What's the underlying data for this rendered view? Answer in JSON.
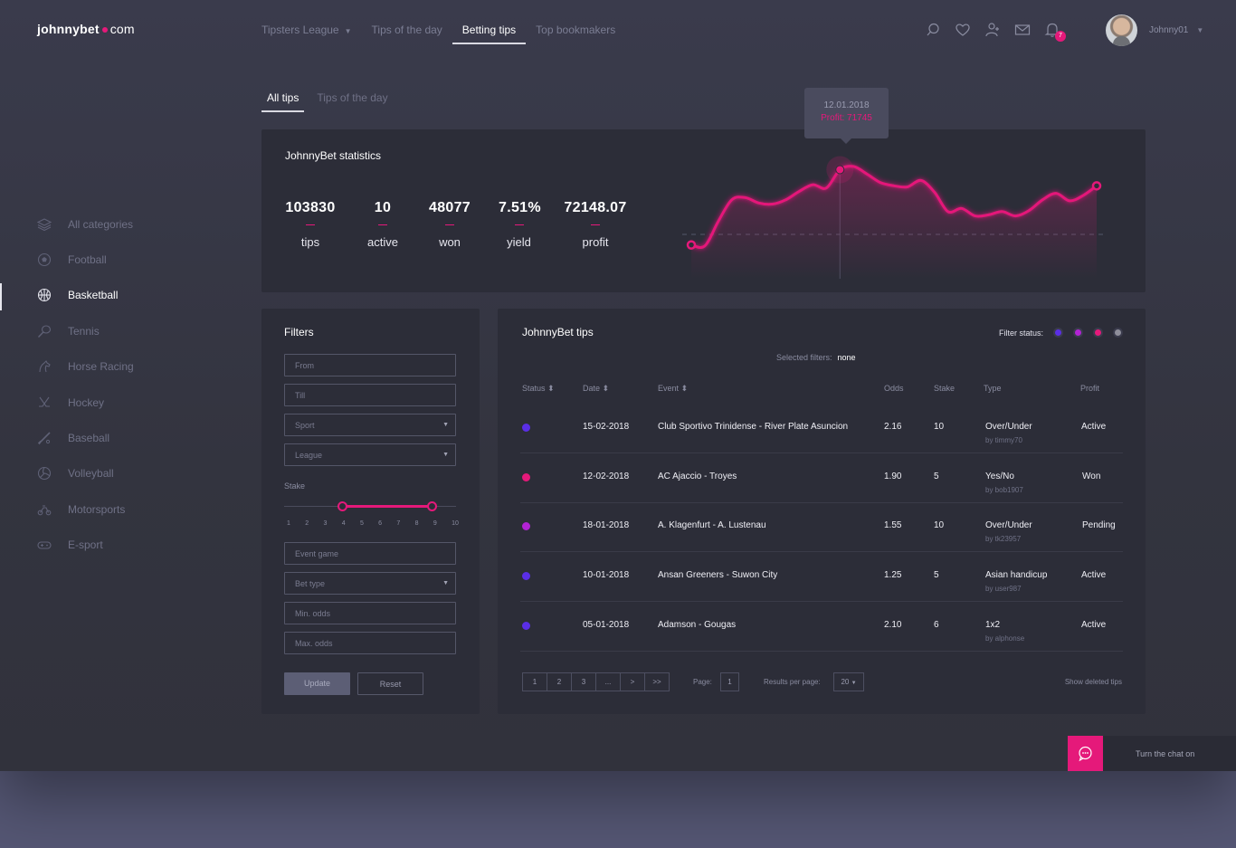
{
  "logo": {
    "brand": "johnnybet",
    "suffix": "com"
  },
  "nav": {
    "items": [
      {
        "label": "Tipsters League",
        "dropdown": true
      },
      {
        "label": "Tips of the day"
      },
      {
        "label": "Betting tips",
        "active": true
      },
      {
        "label": "Top bookmakers"
      }
    ]
  },
  "header": {
    "icons": [
      "search-icon",
      "heart-icon",
      "user-add-icon",
      "mail-icon",
      "bell-icon"
    ],
    "notification_count": "7",
    "username": "Johnny01"
  },
  "sidebar": {
    "items": [
      {
        "label": "All categories",
        "icon": "layers-icon"
      },
      {
        "label": "Football",
        "icon": "football-icon"
      },
      {
        "label": "Basketball",
        "icon": "basketball-icon",
        "active": true
      },
      {
        "label": "Tennis",
        "icon": "tennis-icon"
      },
      {
        "label": "Horse Racing",
        "icon": "horse-icon"
      },
      {
        "label": "Hockey",
        "icon": "hockey-icon"
      },
      {
        "label": "Baseball",
        "icon": "baseball-icon"
      },
      {
        "label": "Volleyball",
        "icon": "volleyball-icon"
      },
      {
        "label": "Motorsports",
        "icon": "motorsports-icon"
      },
      {
        "label": "E-sport",
        "icon": "gamepad-icon"
      }
    ]
  },
  "tabs": [
    {
      "label": "All tips",
      "active": true
    },
    {
      "label": "Tips of the day"
    }
  ],
  "stats": {
    "title": "JohnnyBet statistics",
    "items": [
      {
        "value": "103830",
        "label": "tips"
      },
      {
        "value": "10",
        "label": "active"
      },
      {
        "value": "48077",
        "label": "won"
      },
      {
        "value": "7.51%",
        "label": "yield"
      },
      {
        "value": "72148.07",
        "label": "profit"
      }
    ],
    "tooltip": {
      "date": "12.01.2018",
      "profit": "Profit: 71745"
    }
  },
  "chart_data": {
    "type": "line",
    "x": [
      0,
      1,
      2,
      3,
      4,
      5,
      6,
      7,
      8,
      9,
      10,
      11,
      12,
      13,
      14,
      15,
      16,
      17,
      18,
      19,
      20,
      21,
      22,
      23,
      24,
      25,
      26,
      27,
      28,
      29,
      30
    ],
    "values": [
      2,
      1,
      24,
      44,
      46,
      41,
      40,
      44,
      52,
      58,
      55,
      72,
      75,
      68,
      60,
      57,
      56,
      62,
      51,
      33,
      36,
      29,
      30,
      33,
      29,
      34,
      44,
      50,
      43,
      48,
      57
    ],
    "highlight_index": 11,
    "color": "#e5197a"
  },
  "filters": {
    "title": "Filters",
    "from_placeholder": "From",
    "till_placeholder": "Till",
    "sport": "Sport",
    "league": "League",
    "stake_label": "Stake",
    "stake_ticks": [
      "1",
      "2",
      "3",
      "4",
      "5",
      "6",
      "7",
      "8",
      "9",
      "10"
    ],
    "stake_range": [
      4,
      9
    ],
    "event_placeholder": "Event game",
    "bet_type": "Bet type",
    "min_odds_placeholder": "Min. odds",
    "max_odds_placeholder": "Max. odds",
    "update_label": "Update",
    "reset_label": "Reset"
  },
  "tips": {
    "title": "JohnnyBet tips",
    "filter_status_label": "Filter status:",
    "status_colors": [
      "#5a2ee6",
      "#b223d4",
      "#e5197a",
      "#8e8e9a"
    ],
    "selected_label": "Selected filters:",
    "selected_value": "none",
    "columns": {
      "status": "Status",
      "date": "Date",
      "event": "Event",
      "odds": "Odds",
      "stake": "Stake",
      "type": "Type",
      "profit": "Profit"
    },
    "rows": [
      {
        "status_color": "#5a2ee6",
        "date": "15-02-2018",
        "event": "Club Sportivo Trinidense - River Plate Asuncion",
        "odds": "2.16",
        "stake": "10",
        "type": "Over/Under",
        "by": "by timmy70",
        "profit": "Active"
      },
      {
        "status_color": "#e5197a",
        "date": "12-02-2018",
        "event": "AC Ajaccio - Troyes",
        "odds": "1.90",
        "stake": "5",
        "type": "Yes/No",
        "by": "by bob1907",
        "profit": "Won"
      },
      {
        "status_color": "#b223d4",
        "date": "18-01-2018",
        "event": "A. Klagenfurt - A. Lustenau",
        "odds": "1.55",
        "stake": "10",
        "type": "Over/Under",
        "by": "by tk23957",
        "profit": "Pending"
      },
      {
        "status_color": "#5a2ee6",
        "date": "10-01-2018",
        "event": "Ansan Greeners - Suwon City",
        "odds": "1.25",
        "stake": "5",
        "type": "Asian handicup",
        "by": "by user987",
        "profit": "Active"
      },
      {
        "status_color": "#5a2ee6",
        "date": "05-01-2018",
        "event": "Adamson - Gougas",
        "odds": "2.10",
        "stake": "6",
        "type": "1x2",
        "by": "by alphonse",
        "profit": "Active"
      }
    ],
    "pager": {
      "pages": [
        "1",
        "2",
        "3",
        "...",
        ">",
        ">>"
      ],
      "page_label": "Page:",
      "page_value": "1",
      "per_page_label": "Results per page:",
      "per_page_value": "20",
      "deleted_label": "Show deleted tips"
    }
  },
  "chat": {
    "label": "Turn the chat on"
  }
}
